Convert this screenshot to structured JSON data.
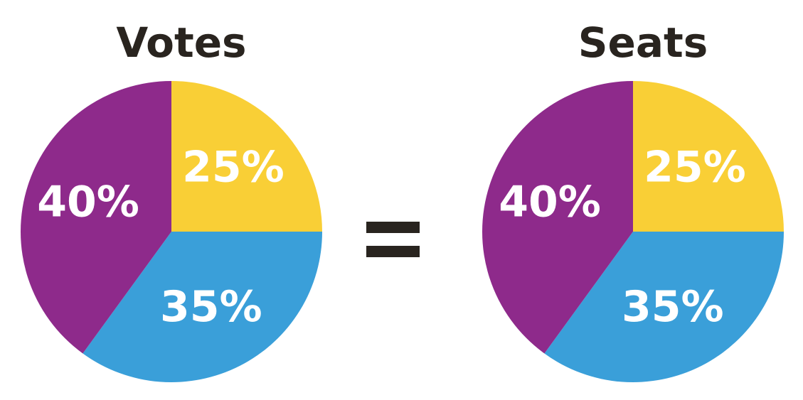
{
  "chart_data": [
    {
      "type": "pie",
      "title": "Votes",
      "values": [
        25,
        35,
        40
      ],
      "value_labels": [
        "25%",
        "35%",
        "40%"
      ],
      "colors": [
        "#f9cf36",
        "#3a9fd9",
        "#8e2a8b"
      ]
    },
    {
      "type": "pie",
      "title": "Seats",
      "values": [
        25,
        35,
        40
      ],
      "value_labels": [
        "25%",
        "35%",
        "40%"
      ],
      "colors": [
        "#f9cf36",
        "#3a9fd9",
        "#8e2a8b"
      ]
    }
  ]
}
